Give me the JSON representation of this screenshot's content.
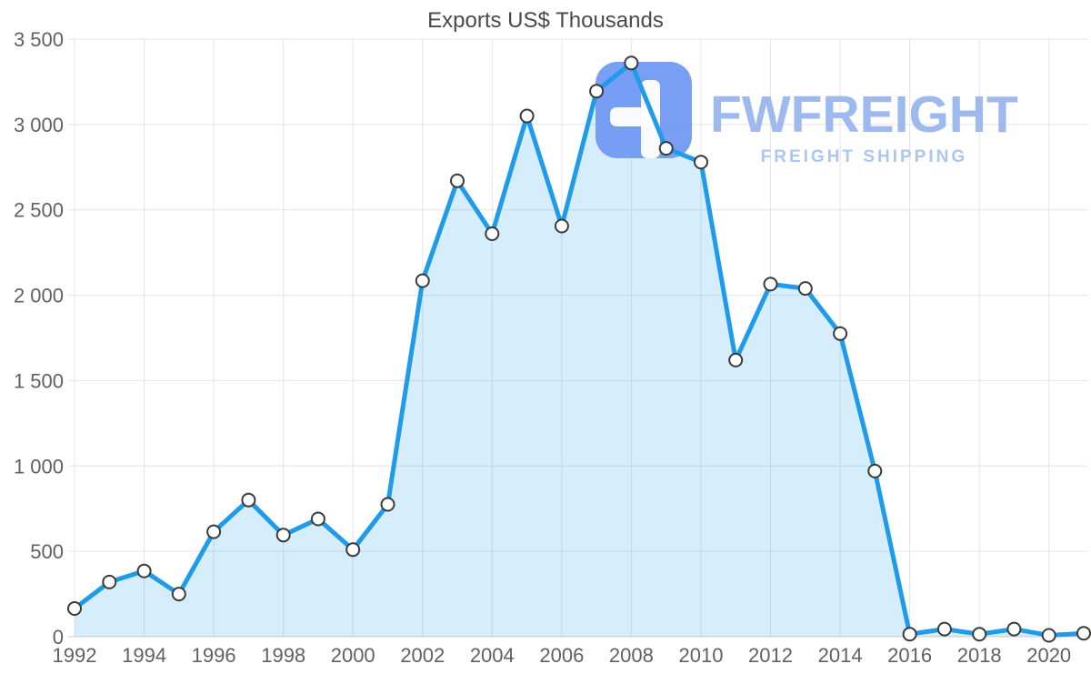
{
  "watermark": {
    "brand": "FWFREIGHT",
    "tagline": "FREIGHT SHIPPING",
    "logo_color": "#6d97f3",
    "brand_color": "#9db9ee",
    "tagline_color": "#abc6f3"
  },
  "chart_data": {
    "type": "area",
    "title": "Exports US$ Thousands",
    "xlabel": "",
    "ylabel": "",
    "x": [
      1992,
      1993,
      1994,
      1995,
      1996,
      1997,
      1998,
      1999,
      2000,
      2001,
      2002,
      2003,
      2004,
      2005,
      2006,
      2007,
      2008,
      2009,
      2010,
      2011,
      2012,
      2013,
      2014,
      2015,
      2016,
      2017,
      2018,
      2019,
      2020,
      2021
    ],
    "series": [
      {
        "name": "Exports US$ Thousands",
        "values": [
          165,
          320,
          385,
          250,
          615,
          800,
          595,
          690,
          510,
          775,
          2085,
          2670,
          2360,
          3050,
          2405,
          3195,
          3360,
          2860,
          2780,
          1620,
          2065,
          2040,
          1775,
          970,
          15,
          45,
          15,
          45,
          8,
          20
        ]
      }
    ],
    "ylim": [
      0,
      3500
    ],
    "yticks": [
      {
        "value": 0,
        "label": "0"
      },
      {
        "value": 500,
        "label": "500"
      },
      {
        "value": 1000,
        "label": "1 000"
      },
      {
        "value": 1500,
        "label": "1 500"
      },
      {
        "value": 2000,
        "label": "2 000"
      },
      {
        "value": 2500,
        "label": "2 500"
      },
      {
        "value": 3000,
        "label": "3 000"
      },
      {
        "value": 3500,
        "label": "3 500"
      }
    ],
    "xticks": [
      1992,
      1994,
      1996,
      1998,
      2000,
      2002,
      2004,
      2006,
      2008,
      2010,
      2012,
      2014,
      2016,
      2018,
      2020
    ],
    "grid": true,
    "legend": "none",
    "colors": {
      "line": "#1e9bea",
      "fill_opacity": 0.18,
      "marker_fill": "#ffffff",
      "marker_stroke": "#3a3a3a",
      "grid": "#e4e4e4",
      "axis_line": "#cfcfcf",
      "label": "#616161",
      "title": "#4a4a4a"
    }
  }
}
